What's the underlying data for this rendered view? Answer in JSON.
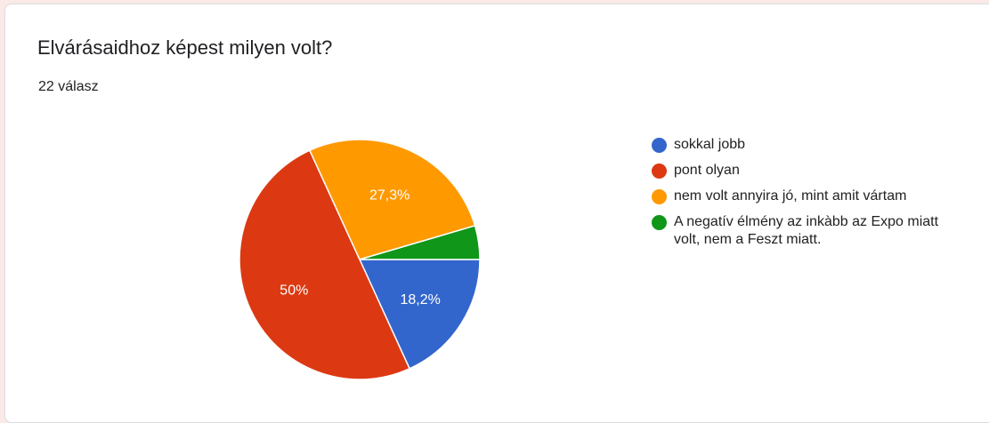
{
  "question": {
    "title": "Elvárásaidhoz képest milyen volt?",
    "responses": "22 válasz"
  },
  "chart_data": {
    "type": "pie",
    "categories": [
      "sokkal jobb",
      "pont olyan",
      "nem volt annyira jó, mint amit vártam",
      "A negatív élmény az inkàbb az Expo miatt volt, nem a Feszt miatt."
    ],
    "values": [
      4,
      11,
      6,
      1
    ],
    "data_labels": [
      "18,2%",
      "50%",
      "27,3%",
      ""
    ],
    "colors": [
      "#3366cc",
      "#dc3912",
      "#ff9900",
      "#109618"
    ],
    "legend_position": "right"
  }
}
